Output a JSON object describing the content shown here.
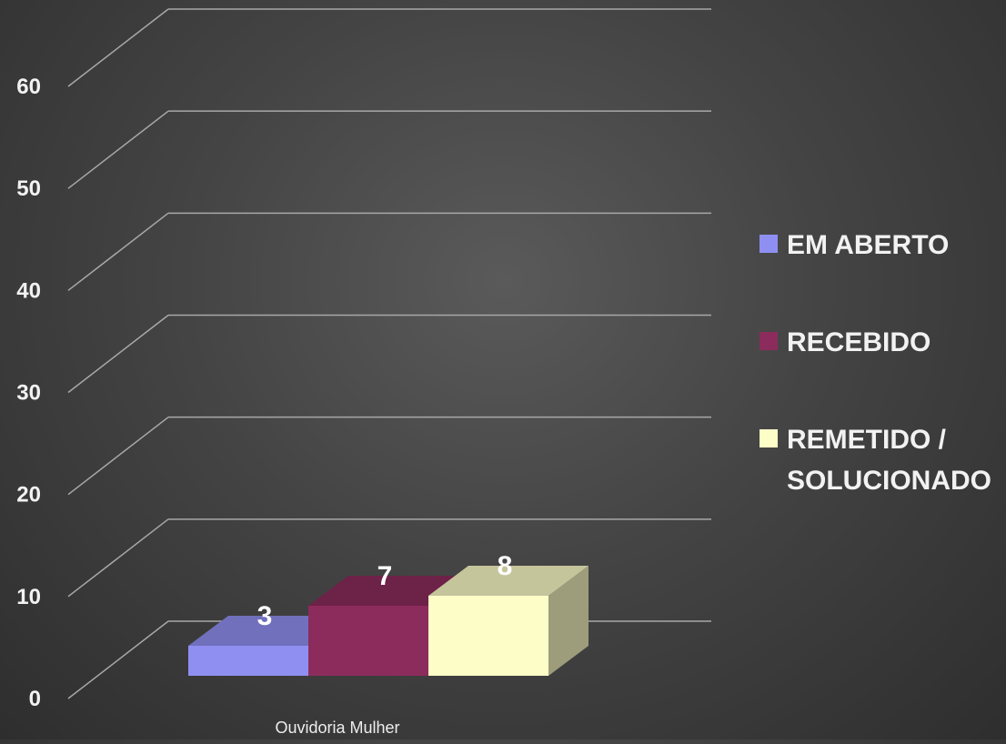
{
  "chart_data": {
    "type": "bar",
    "style": "3d-clustered-column",
    "categories": [
      "Ouvidoria Mulher"
    ],
    "series": [
      {
        "name": "EM ABERTO",
        "values": [
          3
        ],
        "color": "#8f8ff2"
      },
      {
        "name": "RECEBIDO",
        "values": [
          7
        ],
        "color": "#8c2c5c"
      },
      {
        "name": "REMETIDO / SOLUCIONADO",
        "values": [
          8
        ],
        "color": "#fdfdc8"
      }
    ],
    "ylim": [
      0,
      60
    ],
    "yticks": [
      "0",
      "10",
      "20",
      "30",
      "40",
      "50",
      "60"
    ],
    "data_labels": [
      "3",
      "7",
      "8"
    ],
    "grid": true,
    "legend_position": "right",
    "background": "#444444"
  }
}
